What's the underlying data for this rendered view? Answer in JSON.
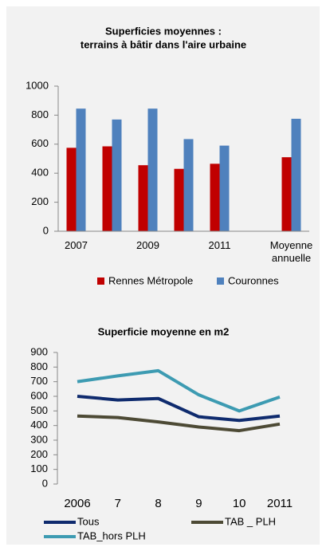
{
  "chart_data": [
    {
      "type": "bar",
      "title": [
        "Superficies moyennes :",
        "terrains à bâtir dans l'aire urbaine"
      ],
      "categories": [
        "2007",
        null,
        "2009",
        null,
        "2011",
        null,
        "Moyenne annuelle"
      ],
      "series": [
        {
          "name": "Rennes Métropole",
          "color": "#c00000",
          "values": [
            575,
            585,
            455,
            430,
            465,
            null,
            510
          ]
        },
        {
          "name": "Couronnes",
          "color": "#4f81bd",
          "values": [
            845,
            770,
            845,
            635,
            590,
            null,
            775
          ]
        }
      ],
      "ylim": [
        0,
        1000
      ],
      "yticks": [
        0,
        200,
        400,
        600,
        800,
        1000
      ],
      "legend": "bottom"
    },
    {
      "type": "line",
      "title": [
        "Superficie moyenne en m2"
      ],
      "categories": [
        "2006",
        "7",
        "8",
        "9",
        "10",
        "2011"
      ],
      "series": [
        {
          "name": "Tous",
          "color": "#0f2b6e",
          "values": [
            600,
            575,
            585,
            460,
            435,
            465
          ]
        },
        {
          "name": "TAB _ PLH",
          "color": "#4d4a35",
          "values": [
            465,
            455,
            425,
            390,
            365,
            410
          ]
        },
        {
          "name": "TAB_hors PLH",
          "color": "#3d9bb2",
          "values": [
            700,
            740,
            775,
            610,
            500,
            595
          ]
        }
      ],
      "ylim": [
        0,
        900
      ],
      "yticks": [
        0,
        100,
        200,
        300,
        400,
        500,
        600,
        700,
        800,
        900
      ],
      "legend": "bottom"
    }
  ]
}
